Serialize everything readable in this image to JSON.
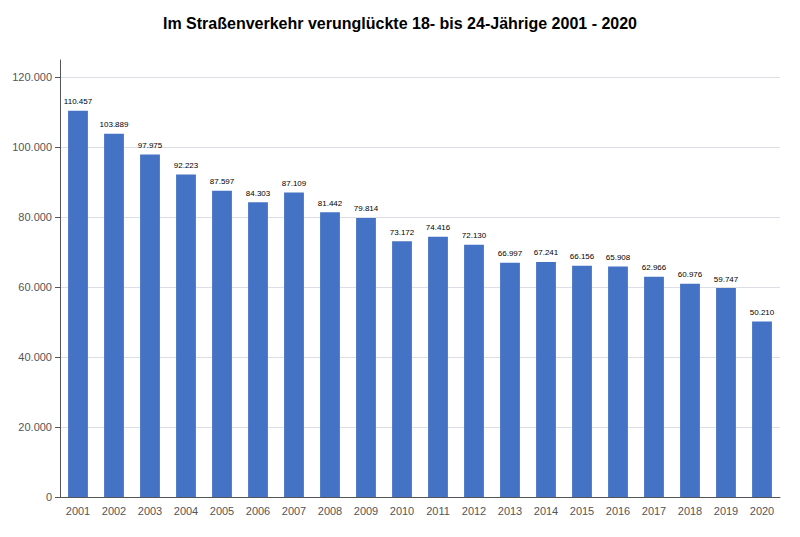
{
  "chart_data": {
    "type": "bar",
    "title": "Im Straßenverkehr verunglückte 18- bis 24-Jährige 2001 - 2020",
    "categories": [
      "2001",
      "2002",
      "2003",
      "2004",
      "2005",
      "2006",
      "2007",
      "2008",
      "2009",
      "2010",
      "2011",
      "2012",
      "2013",
      "2014",
      "2015",
      "2016",
      "2017",
      "2018",
      "2019",
      "2020"
    ],
    "values": [
      110457,
      103889,
      97975,
      92223,
      87597,
      84303,
      87109,
      81442,
      79814,
      73172,
      74416,
      72130,
      66997,
      67241,
      66156,
      65908,
      62966,
      60976,
      59747,
      50210
    ],
    "value_labels": [
      "110.457",
      "103.889",
      "97.975",
      "92.223",
      "87.597",
      "84.303",
      "87.109",
      "81.442",
      "79.814",
      "73.172",
      "74.416",
      "72.130",
      "66.997",
      "67.241",
      "66.156",
      "65.908",
      "62.966",
      "60.976",
      "59.747",
      "50.210"
    ],
    "data_labels": true,
    "color": "#4472C4",
    "ylim": [
      0,
      125000
    ],
    "yticks": [
      0,
      {
        "value": 20000,
        "label": "20.000"
      },
      {
        "value": 40000,
        "label": "40.000"
      },
      {
        "value": 60000,
        "label": "60.000"
      },
      {
        "value": 80000,
        "label": "80.000"
      },
      {
        "value": 100000,
        "label": "100.000"
      },
      {
        "value": 120000,
        "label": "120.000"
      }
    ],
    "grid": true
  }
}
